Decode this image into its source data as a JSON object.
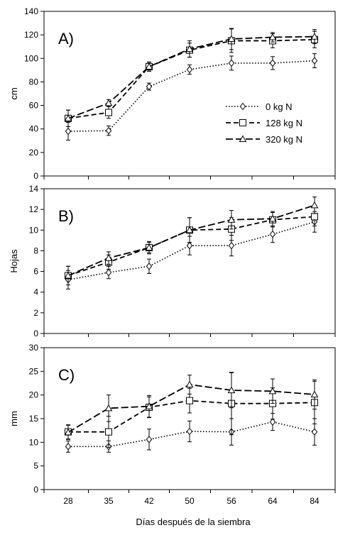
{
  "chart_data": [
    {
      "type": "line",
      "panel_label": "A)",
      "ylabel": "cm",
      "ylim": [
        0,
        140
      ],
      "yticks": [
        0,
        20,
        40,
        60,
        80,
        100,
        120,
        140
      ],
      "categories": [
        "28",
        "35",
        "42",
        "50",
        "56",
        "64",
        "84"
      ],
      "legend": "right",
      "series": [
        {
          "name": "0 kg N",
          "marker": "diamond",
          "dash": "dotted",
          "values": [
            38,
            38.5,
            76,
            90.5,
            96,
            96,
            98
          ],
          "errors": [
            7.5,
            4,
            3,
            4,
            6,
            5.5,
            6
          ]
        },
        {
          "name": "128 kg N",
          "marker": "square",
          "dash": "dashed",
          "values": [
            49,
            54,
            93,
            107,
            115,
            115,
            116
          ],
          "errors": [
            7,
            5,
            4,
            6,
            10,
            6,
            7
          ]
        },
        {
          "name": "320 kg N",
          "marker": "triangle",
          "dash": "longdash",
          "values": [
            49,
            62,
            93,
            108,
            116.5,
            118,
            118.5
          ],
          "errors": [
            7,
            3,
            3,
            7,
            9,
            4,
            6
          ]
        }
      ]
    },
    {
      "type": "line",
      "panel_label": "B)",
      "ylabel": "Hojas",
      "ylim": [
        0,
        14
      ],
      "yticks": [
        0,
        2,
        4,
        6,
        8,
        10,
        12,
        14
      ],
      "categories": [
        "28",
        "35",
        "42",
        "50",
        "56",
        "64",
        "84"
      ],
      "series": [
        {
          "name": "0 kg N",
          "marker": "diamond",
          "dash": "dotted",
          "values": [
            5.2,
            5.9,
            6.5,
            8.5,
            8.5,
            9.6,
            10.8
          ],
          "errors": [
            0.9,
            0.6,
            0.7,
            0.9,
            1,
            0.8,
            1.0
          ]
        },
        {
          "name": "128 kg N",
          "marker": "square",
          "dash": "dashed",
          "values": [
            5.6,
            6.9,
            8.3,
            10,
            10.1,
            11,
            11.3
          ],
          "errors": [
            0.9,
            0.7,
            0.6,
            1.2,
            1.1,
            0.7,
            0.9
          ]
        },
        {
          "name": "320 kg N",
          "marker": "triangle",
          "dash": "longdash",
          "values": [
            5.6,
            7.3,
            8.3,
            10,
            11,
            11.1,
            12.4
          ],
          "errors": [
            0.9,
            0.6,
            0.5,
            1.2,
            0.9,
            0.7,
            0.8
          ]
        }
      ]
    },
    {
      "type": "line",
      "panel_label": "C)",
      "ylabel": "mm",
      "xlabel": "Días después de la siembra",
      "ylim": [
        0,
        30
      ],
      "yticks": [
        0,
        5,
        10,
        15,
        20,
        25,
        30
      ],
      "categories": [
        "28",
        "35",
        "42",
        "50",
        "56",
        "64",
        "84"
      ],
      "series": [
        {
          "name": "0 kg N",
          "marker": "diamond",
          "dash": "dotted",
          "values": [
            9.1,
            9.1,
            10.6,
            12.3,
            12.2,
            14.3,
            12.2
          ],
          "errors": [
            1.2,
            1.2,
            2.2,
            2.2,
            2.8,
            1.8,
            2.8
          ]
        },
        {
          "name": "128 kg N",
          "marker": "square",
          "dash": "dashed",
          "values": [
            12.2,
            12.2,
            17.4,
            18.8,
            18.2,
            18.2,
            18.4
          ],
          "errors": [
            1.5,
            3.3,
            2.2,
            2.6,
            6.6,
            3.3,
            4.5
          ]
        },
        {
          "name": "320 kg N",
          "marker": "triangle",
          "dash": "longdash",
          "values": [
            12.1,
            17.2,
            17.6,
            22.2,
            21,
            20.8,
            20.1
          ],
          "errors": [
            1.5,
            2.8,
            2.3,
            2,
            3.7,
            2.6,
            3.1
          ]
        }
      ]
    }
  ]
}
